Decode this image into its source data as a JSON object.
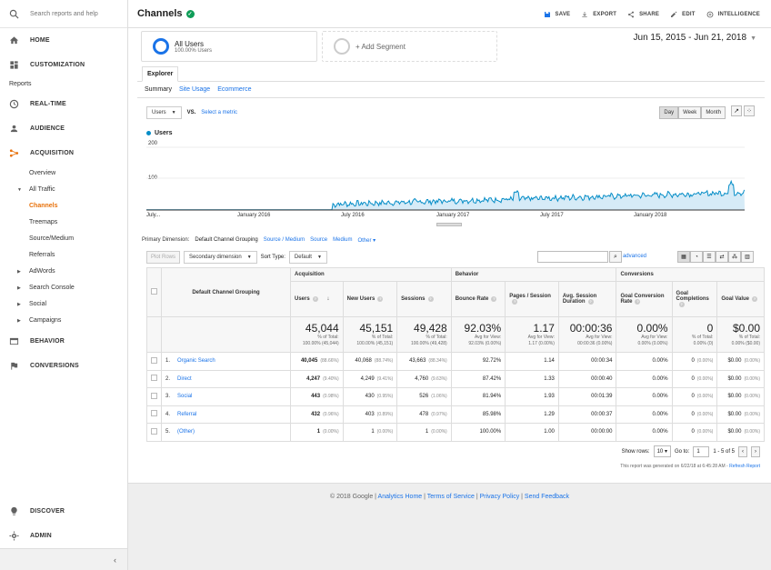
{
  "sidebar": {
    "search_placeholder": "Search reports and help",
    "home": "HOME",
    "customization": "CUSTOMIZATION",
    "reports_label": "Reports",
    "realtime": "REAL-TIME",
    "audience": "AUDIENCE",
    "acquisition": "ACQUISITION",
    "acq_items": [
      "Overview",
      "All Traffic",
      "Channels",
      "Treemaps",
      "Source/Medium",
      "Referrals",
      "AdWords",
      "Search Console",
      "Social",
      "Campaigns"
    ],
    "behavior": "BEHAVIOR",
    "conversions": "CONVERSIONS",
    "discover": "DISCOVER",
    "admin": "ADMIN"
  },
  "header": {
    "title": "Channels",
    "save": "SAVE",
    "export": "EXPORT",
    "share": "SHARE",
    "edit": "EDIT",
    "intelligence": "INTELLIGENCE"
  },
  "segments": {
    "all_users": "All Users",
    "all_users_pct": "100.00% Users",
    "add_segment": "+ Add Segment"
  },
  "date_range": "Jun 15, 2015 - Jun 21, 2018",
  "explorer_tab": "Explorer",
  "subtabs": [
    "Summary",
    "Site Usage",
    "Ecommerce"
  ],
  "chart_controls": {
    "metric": "Users",
    "vs": "VS.",
    "select_metric": "Select a metric",
    "granularity": [
      "Day",
      "Week",
      "Month"
    ],
    "selected_granularity": "Day"
  },
  "chart_data": {
    "type": "area",
    "legend": "Users",
    "yticks": [
      "200",
      "100"
    ],
    "ylim": [
      0,
      200
    ],
    "xtick_labels": [
      "July...",
      "January 2016",
      "July 2016",
      "January 2017",
      "July 2017",
      "January 2018"
    ],
    "color": "#058dc7",
    "series_description": [
      {
        "period": "Jun 2015 - Jun 2016",
        "value": 0
      },
      {
        "period": "Jul 2016",
        "value": 18
      },
      {
        "period": "Jan 2017",
        "value": 25
      },
      {
        "period": "Jul 2017",
        "value": 35
      },
      {
        "period": "Jan 2018",
        "value": 45
      },
      {
        "period": "Jun 2018",
        "value": 55
      }
    ]
  },
  "dimensions": {
    "label": "Primary Dimension:",
    "current": "Default Channel Grouping",
    "others": [
      "Source / Medium",
      "Source",
      "Medium",
      "Other"
    ]
  },
  "table_controls": {
    "plot_rows": "Plot Rows",
    "secondary": "Secondary dimension",
    "sort_type_label": "Sort Type:",
    "sort_type": "Default",
    "advanced": "advanced"
  },
  "table": {
    "groups": [
      "Acquisition",
      "Behavior",
      "Conversions"
    ],
    "dim_header": "Default Channel Grouping",
    "columns": [
      "Users",
      "New Users",
      "Sessions",
      "Bounce Rate",
      "Pages / Session",
      "Avg. Session Duration",
      "Goal Conversion Rate",
      "Goal Completions",
      "Goal Value"
    ],
    "totals": [
      {
        "v": "45,044",
        "s1": "% of Total:",
        "s2": "100.00% (45,044)"
      },
      {
        "v": "45,151",
        "s1": "% of Total:",
        "s2": "100.00% (45,151)"
      },
      {
        "v": "49,428",
        "s1": "% of Total:",
        "s2": "100.00% (49,428)"
      },
      {
        "v": "92.03%",
        "s1": "Avg for View:",
        "s2": "92.03% (0.00%)"
      },
      {
        "v": "1.17",
        "s1": "Avg for View:",
        "s2": "1.17 (0.00%)"
      },
      {
        "v": "00:00:36",
        "s1": "Avg for View:",
        "s2": "00:00:36 (0.00%)"
      },
      {
        "v": "0.00%",
        "s1": "Avg for View:",
        "s2": "0.00% (0.00%)"
      },
      {
        "v": "0",
        "s1": "% of Total:",
        "s2": "0.00% (0)"
      },
      {
        "v": "$0.00",
        "s1": "% of Total:",
        "s2": "0.00% ($0.00)"
      }
    ],
    "rows": [
      {
        "n": "1.",
        "name": "Organic Search",
        "users": "40,045",
        "users_p": "(88.66%)",
        "new": "40,068",
        "new_p": "(88.74%)",
        "sess": "43,663",
        "sess_p": "(88.34%)",
        "bounce": "92.72%",
        "pps": "1.14",
        "dur": "00:00:34",
        "gcr": "0.00%",
        "gc": "0",
        "gc_p": "(0.00%)",
        "gv": "$0.00",
        "gv_p": "(0.00%)"
      },
      {
        "n": "2.",
        "name": "Direct",
        "users": "4,247",
        "users_p": "(9.40%)",
        "new": "4,249",
        "new_p": "(9.41%)",
        "sess": "4,760",
        "sess_p": "(9.63%)",
        "bounce": "87.42%",
        "pps": "1.33",
        "dur": "00:00:40",
        "gcr": "0.00%",
        "gc": "0",
        "gc_p": "(0.00%)",
        "gv": "$0.00",
        "gv_p": "(0.00%)"
      },
      {
        "n": "3.",
        "name": "Social",
        "users": "443",
        "users_p": "(0.98%)",
        "new": "430",
        "new_p": "(0.95%)",
        "sess": "526",
        "sess_p": "(1.06%)",
        "bounce": "81.94%",
        "pps": "1.93",
        "dur": "00:01:39",
        "gcr": "0.00%",
        "gc": "0",
        "gc_p": "(0.00%)",
        "gv": "$0.00",
        "gv_p": "(0.00%)"
      },
      {
        "n": "4.",
        "name": "Referral",
        "users": "432",
        "users_p": "(0.96%)",
        "new": "403",
        "new_p": "(0.89%)",
        "sess": "478",
        "sess_p": "(0.97%)",
        "bounce": "85.98%",
        "pps": "1.29",
        "dur": "00:00:37",
        "gcr": "0.00%",
        "gc": "0",
        "gc_p": "(0.00%)",
        "gv": "$0.00",
        "gv_p": "(0.00%)"
      },
      {
        "n": "5.",
        "name": "(Other)",
        "users": "1",
        "users_p": "(0.00%)",
        "new": "1",
        "new_p": "(0.00%)",
        "sess": "1",
        "sess_p": "(0.00%)",
        "bounce": "100.00%",
        "pps": "1.00",
        "dur": "00:00:00",
        "gcr": "0.00%",
        "gc": "0",
        "gc_p": "(0.00%)",
        "gv": "$0.00",
        "gv_p": "(0.00%)"
      }
    ]
  },
  "pager": {
    "show_rows": "Show rows:",
    "rows_value": "10",
    "goto": "Go to:",
    "goto_value": "1",
    "range": "1 - 5 of 5"
  },
  "generated": {
    "text": "This report was generated on 6/22/18 at 6:45:28 AM -",
    "refresh": "Refresh Report"
  },
  "footer": {
    "copyright": "© 2018 Google",
    "links": [
      "Analytics Home",
      "Terms of Service",
      "Privacy Policy",
      "Send Feedback"
    ]
  }
}
